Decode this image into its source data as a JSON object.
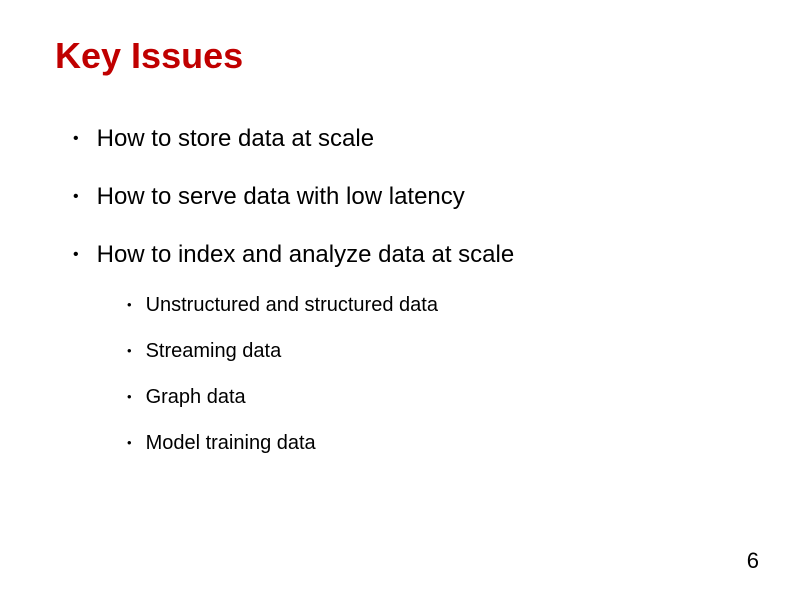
{
  "slide": {
    "title": "Key Issues",
    "title_color": "#c00000",
    "text_color": "#000000",
    "background_color": "#ffffff",
    "bullets": [
      {
        "text": "How to store data at scale",
        "sub": []
      },
      {
        "text": "How to serve data with low latency",
        "sub": []
      },
      {
        "text": "How to index and analyze data at scale",
        "sub": [
          "Unstructured and structured data",
          "Streaming data",
          "Graph data",
          "Model training data"
        ]
      }
    ],
    "page_number": "6",
    "title_fontsize": 36,
    "bullet_fontsize": 24,
    "sub_bullet_fontsize": 20,
    "page_number_fontsize": 22
  }
}
